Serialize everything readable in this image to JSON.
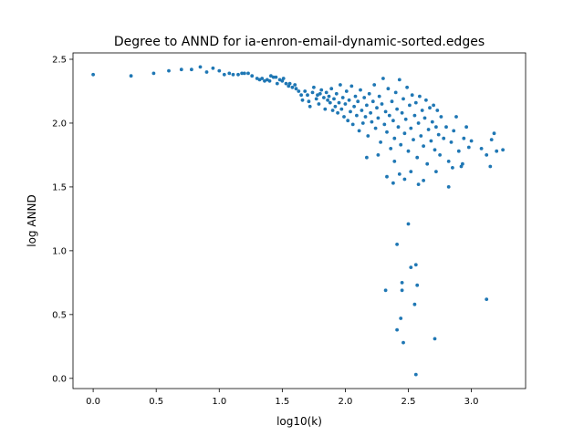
{
  "chart_data": {
    "type": "scatter",
    "title": "Degree to ANND for ia-enron-email-dynamic-sorted.edges",
    "xlabel": "log10(k)",
    "ylabel": "log ANND",
    "xlim": [
      -0.16,
      3.43
    ],
    "ylim": [
      -0.08,
      2.55
    ],
    "xticks": [
      0.0,
      0.5,
      1.0,
      1.5,
      2.0,
      2.5,
      3.0
    ],
    "xtick_labels": [
      "0.0",
      "0.5",
      "1.0",
      "1.5",
      "2.0",
      "2.5",
      "3.0"
    ],
    "yticks": [
      0.0,
      0.5,
      1.0,
      1.5,
      2.0,
      2.5
    ],
    "ytick_labels": [
      "0.0",
      "0.5",
      "1.0",
      "1.5",
      "2.0",
      "2.5"
    ],
    "grid": false,
    "legend": "none",
    "marker_color": "#1f77b4",
    "points": [
      [
        0.0,
        2.38
      ],
      [
        0.3,
        2.37
      ],
      [
        0.48,
        2.39
      ],
      [
        0.6,
        2.41
      ],
      [
        0.7,
        2.42
      ],
      [
        0.78,
        2.42
      ],
      [
        0.85,
        2.44
      ],
      [
        0.9,
        2.4
      ],
      [
        0.95,
        2.43
      ],
      [
        1.0,
        2.41
      ],
      [
        1.04,
        2.38
      ],
      [
        1.08,
        2.39
      ],
      [
        1.11,
        2.38
      ],
      [
        1.15,
        2.38
      ],
      [
        1.18,
        2.39
      ],
      [
        1.2,
        2.39
      ],
      [
        1.23,
        2.39
      ],
      [
        1.26,
        2.37
      ],
      [
        1.3,
        2.35
      ],
      [
        1.32,
        2.34
      ],
      [
        1.34,
        2.35
      ],
      [
        1.36,
        2.33
      ],
      [
        1.38,
        2.34
      ],
      [
        1.4,
        2.33
      ],
      [
        1.41,
        2.37
      ],
      [
        1.43,
        2.36
      ],
      [
        1.45,
        2.36
      ],
      [
        1.46,
        2.31
      ],
      [
        1.48,
        2.34
      ],
      [
        1.5,
        2.33
      ],
      [
        1.51,
        2.35
      ],
      [
        1.53,
        2.31
      ],
      [
        1.55,
        2.29
      ],
      [
        1.56,
        2.31
      ],
      [
        1.58,
        2.28
      ],
      [
        1.6,
        2.3
      ],
      [
        1.61,
        2.27
      ],
      [
        1.63,
        2.25
      ],
      [
        1.65,
        2.22
      ],
      [
        1.66,
        2.18
      ],
      [
        1.68,
        2.25
      ],
      [
        1.7,
        2.22
      ],
      [
        1.71,
        2.17
      ],
      [
        1.72,
        2.13
      ],
      [
        1.74,
        2.24
      ],
      [
        1.75,
        2.28
      ],
      [
        1.77,
        2.19
      ],
      [
        1.78,
        2.22
      ],
      [
        1.79,
        2.15
      ],
      [
        1.8,
        2.23
      ],
      [
        1.81,
        2.26
      ],
      [
        1.83,
        2.2
      ],
      [
        1.84,
        2.11
      ],
      [
        1.85,
        2.24
      ],
      [
        1.86,
        2.18
      ],
      [
        1.87,
        2.21
      ],
      [
        1.88,
        2.16
      ],
      [
        1.89,
        2.27
      ],
      [
        1.9,
        2.1
      ],
      [
        1.91,
        2.19
      ],
      [
        1.92,
        2.13
      ],
      [
        1.93,
        2.23
      ],
      [
        1.94,
        2.08
      ],
      [
        1.95,
        2.16
      ],
      [
        1.96,
        2.3
      ],
      [
        1.97,
        2.11
      ],
      [
        1.98,
        2.2
      ],
      [
        1.99,
        2.05
      ],
      [
        2.0,
        2.15
      ],
      [
        2.01,
        2.25
      ],
      [
        2.02,
        2.02
      ],
      [
        2.03,
        2.18
      ],
      [
        2.04,
        2.09
      ],
      [
        2.05,
        2.29
      ],
      [
        2.06,
        1.99
      ],
      [
        2.07,
        2.13
      ],
      [
        2.08,
        2.21
      ],
      [
        2.09,
        2.06
      ],
      [
        2.1,
        2.17
      ],
      [
        2.11,
        1.94
      ],
      [
        2.12,
        2.26
      ],
      [
        2.13,
        2.1
      ],
      [
        2.14,
        2.0
      ],
      [
        2.15,
        2.2
      ],
      [
        2.16,
        2.05
      ],
      [
        2.17,
        2.14
      ],
      [
        2.18,
        1.9
      ],
      [
        2.19,
        2.23
      ],
      [
        2.2,
        2.08
      ],
      [
        2.21,
        2.01
      ],
      [
        2.22,
        2.17
      ],
      [
        2.23,
        2.3
      ],
      [
        2.24,
        1.96
      ],
      [
        2.25,
        2.12
      ],
      [
        2.26,
        2.04
      ],
      [
        2.27,
        2.21
      ],
      [
        2.28,
        1.85
      ],
      [
        2.29,
        2.15
      ],
      [
        2.3,
        2.35
      ],
      [
        2.31,
        1.99
      ],
      [
        2.32,
        2.09
      ],
      [
        2.33,
        1.93
      ],
      [
        2.34,
        2.27
      ],
      [
        2.35,
        2.06
      ],
      [
        2.36,
        1.8
      ],
      [
        2.37,
        2.17
      ],
      [
        2.38,
        2.02
      ],
      [
        2.39,
        1.88
      ],
      [
        2.4,
        2.24
      ],
      [
        2.41,
        2.11
      ],
      [
        2.42,
        1.97
      ],
      [
        2.43,
        2.34
      ],
      [
        2.44,
        1.83
      ],
      [
        2.45,
        2.08
      ],
      [
        2.46,
        2.19
      ],
      [
        2.47,
        1.92
      ],
      [
        2.48,
        2.03
      ],
      [
        2.49,
        2.28
      ],
      [
        2.5,
        1.78
      ],
      [
        2.51,
        2.14
      ],
      [
        2.52,
        1.96
      ],
      [
        2.53,
        2.22
      ],
      [
        2.54,
        1.87
      ],
      [
        2.55,
        2.06
      ],
      [
        2.56,
        2.16
      ],
      [
        2.57,
        1.73
      ],
      [
        2.58,
        2.0
      ],
      [
        2.59,
        2.21
      ],
      [
        2.6,
        1.9
      ],
      [
        2.61,
        2.1
      ],
      [
        2.62,
        1.82
      ],
      [
        2.63,
        2.04
      ],
      [
        2.64,
        2.18
      ],
      [
        2.65,
        1.68
      ],
      [
        2.66,
        1.95
      ],
      [
        2.67,
        2.12
      ],
      [
        2.68,
        1.86
      ],
      [
        2.69,
        2.01
      ],
      [
        2.7,
        2.14
      ],
      [
        2.71,
        1.79
      ],
      [
        2.72,
        1.97
      ],
      [
        2.73,
        2.1
      ],
      [
        2.74,
        1.91
      ],
      [
        2.75,
        1.75
      ],
      [
        2.76,
        2.05
      ],
      [
        2.78,
        1.88
      ],
      [
        2.8,
        1.97
      ],
      [
        2.82,
        1.7
      ],
      [
        2.84,
        1.85
      ],
      [
        2.86,
        1.94
      ],
      [
        2.88,
        2.05
      ],
      [
        2.9,
        1.78
      ],
      [
        2.92,
        1.66
      ],
      [
        2.94,
        1.88
      ],
      [
        2.96,
        1.97
      ],
      [
        2.98,
        1.81
      ],
      [
        3.0,
        1.86
      ],
      [
        3.08,
        1.8
      ],
      [
        3.12,
        1.75
      ],
      [
        3.16,
        1.87
      ],
      [
        3.18,
        1.92
      ],
      [
        3.2,
        1.78
      ],
      [
        3.25,
        1.79
      ],
      [
        3.15,
        1.66
      ],
      [
        2.17,
        1.73
      ],
      [
        2.26,
        1.75
      ],
      [
        2.33,
        1.58
      ],
      [
        2.38,
        1.53
      ],
      [
        2.43,
        1.6
      ],
      [
        2.47,
        1.56
      ],
      [
        2.58,
        1.52
      ],
      [
        2.62,
        1.55
      ],
      [
        2.72,
        1.62
      ],
      [
        2.82,
        1.5
      ],
      [
        2.52,
        1.62
      ],
      [
        2.39,
        1.7
      ],
      [
        2.85,
        1.65
      ],
      [
        2.93,
        1.68
      ],
      [
        2.5,
        1.21
      ],
      [
        2.41,
        1.05
      ],
      [
        2.52,
        0.87
      ],
      [
        2.56,
        0.89
      ],
      [
        2.45,
        0.75
      ],
      [
        2.57,
        0.73
      ],
      [
        2.32,
        0.69
      ],
      [
        2.45,
        0.69
      ],
      [
        2.55,
        0.58
      ],
      [
        2.44,
        0.47
      ],
      [
        2.41,
        0.38
      ],
      [
        2.71,
        0.31
      ],
      [
        2.46,
        0.28
      ],
      [
        2.56,
        0.03
      ],
      [
        3.12,
        0.62
      ]
    ]
  }
}
